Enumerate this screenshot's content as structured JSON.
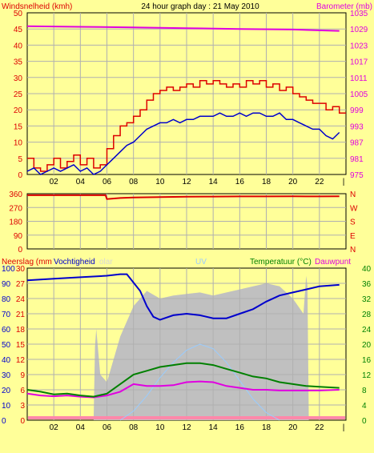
{
  "colors": {
    "background": "#ffff99",
    "plot_bg": "#ffff99",
    "grid": "#b0b0b0",
    "wind_avg": "#0000cc",
    "wind_gust": "#dd0000",
    "barometer": "#e000e0",
    "direction": "#dd0000",
    "humidity": "#0000cc",
    "temperature": "#008000",
    "dewpoint": "#e000e0",
    "solar": "#c0c0c0",
    "uv": "#99ccff",
    "rain": "#ff88aa",
    "green_text": "#008000",
    "red_text": "#dd0000",
    "magenta_text": "#e000e0"
  },
  "chart_data": [
    {
      "type": "line",
      "title": "24 hour graph day : 21 May 2010",
      "left_axis_label": "Windsnelheid (kmh)",
      "right_axis_label": "Barometer (mb)",
      "x_ticks": [
        "02",
        "04",
        "06",
        "08",
        "10",
        "12",
        "14",
        "16",
        "18",
        "20",
        "22"
      ],
      "x_hours": [
        2,
        4,
        6,
        8,
        10,
        12,
        14,
        16,
        18,
        20,
        22
      ],
      "ylim": [
        0,
        50
      ],
      "y_ticks": [
        "0",
        "5",
        "10",
        "15",
        "20",
        "25",
        "30",
        "35",
        "40",
        "45",
        "50"
      ],
      "y2lim": [
        975,
        1035
      ],
      "y2_ticks": [
        "975",
        "981",
        "987",
        "993",
        "999",
        "1005",
        "1011",
        "1017",
        "1023",
        "1029",
        "1035"
      ],
      "series": [
        {
          "id": "gust",
          "x": [
            0,
            0.5,
            1,
            1.5,
            2,
            2.5,
            3,
            3.5,
            4,
            4.5,
            5,
            5.5,
            6,
            6.5,
            7,
            7.5,
            8,
            8.5,
            9,
            9.5,
            10,
            10.5,
            11,
            11.5,
            12,
            12.5,
            13,
            13.5,
            14,
            14.5,
            15,
            15.5,
            16,
            16.5,
            17,
            17.5,
            18,
            18.5,
            19,
            19.5,
            20,
            20.5,
            21,
            21.5,
            22,
            22.5,
            23,
            23.5
          ],
          "values": [
            5,
            2,
            1,
            3,
            5,
            2,
            4,
            6,
            3,
            5,
            2,
            3,
            8,
            12,
            15,
            16,
            18,
            20,
            23,
            25,
            26,
            27,
            26,
            27,
            28,
            27,
            29,
            28,
            29,
            28,
            27,
            28,
            27,
            29,
            28,
            29,
            27,
            28,
            26,
            27,
            25,
            24,
            23,
            22,
            22,
            20,
            21,
            19
          ]
        },
        {
          "id": "average",
          "x": [
            0,
            0.5,
            1,
            1.5,
            2,
            2.5,
            3,
            3.5,
            4,
            4.5,
            5,
            5.5,
            6,
            6.5,
            7,
            7.5,
            8,
            8.5,
            9,
            9.5,
            10,
            10.5,
            11,
            11.5,
            12,
            12.5,
            13,
            13.5,
            14,
            14.5,
            15,
            15.5,
            16,
            16.5,
            17,
            17.5,
            18,
            18.5,
            19,
            19.5,
            20,
            20.5,
            21,
            21.5,
            22,
            22.5,
            23,
            23.5
          ],
          "values": [
            1,
            2,
            0,
            1,
            2,
            1,
            2,
            3,
            1,
            2,
            0,
            1,
            3,
            5,
            7,
            9,
            10,
            12,
            14,
            15,
            16,
            16,
            17,
            16,
            17,
            17,
            18,
            18,
            18,
            19,
            18,
            18,
            19,
            18,
            19,
            19,
            18,
            18,
            19,
            17,
            17,
            16,
            15,
            14,
            14,
            12,
            11,
            13
          ]
        },
        {
          "id": "barometer",
          "x": [
            0,
            4,
            8,
            12,
            16,
            20,
            23.5
          ],
          "values": [
            1030,
            1029.8,
            1029.6,
            1029.3,
            1029,
            1028.8,
            1028.3
          ]
        }
      ]
    },
    {
      "type": "line",
      "ylim": [
        0,
        360
      ],
      "y_ticks": [
        "0",
        "90",
        "180",
        "270",
        "360"
      ],
      "compass": [
        "N",
        "W",
        "S",
        "E",
        "N"
      ],
      "series": [
        {
          "id": "direction",
          "x": [
            0,
            2,
            4,
            5.9,
            6,
            7,
            8,
            10,
            12,
            14,
            16,
            18,
            20,
            22,
            23.5
          ],
          "values": [
            350,
            350,
            350,
            350,
            325,
            332,
            335,
            338,
            340,
            341,
            342,
            342,
            343,
            342,
            343
          ]
        }
      ]
    },
    {
      "type": "line",
      "left_label_a": "Neerslag (mm",
      "left_label_b": "Vochtigheid",
      "solar_label": "olar",
      "uv_label": "UV",
      "right_label_a": "Temperatuur (°C)",
      "right_label_b": "Dauwpunt",
      "hum_ticks": [
        "0",
        "10",
        "20",
        "30",
        "40",
        "50",
        "60",
        "70",
        "80",
        "90",
        "100"
      ],
      "rain_ticks": [
        "0",
        "3",
        "6",
        "9",
        "12",
        "15",
        "18",
        "21",
        "24",
        "27",
        "30"
      ],
      "temp_ticks": [
        "0",
        "4",
        "8",
        "12",
        "16",
        "20",
        "24",
        "28",
        "32",
        "36",
        "40"
      ],
      "humidity_lim": [
        0,
        100
      ],
      "temp_lim": [
        0,
        40
      ],
      "series": [
        {
          "id": "humidity",
          "x": [
            0,
            2,
            4,
            6,
            7,
            7.5,
            8.5,
            9,
            9.5,
            10,
            11,
            12,
            13,
            14,
            15,
            16,
            17,
            18,
            19,
            20,
            21,
            22,
            23.5
          ],
          "values": [
            92,
            93,
            94,
            95,
            96,
            96,
            85,
            75,
            68,
            66,
            69,
            70,
            69,
            67,
            67,
            70,
            73,
            78,
            82,
            84,
            86,
            88,
            89
          ]
        },
        {
          "id": "temperature",
          "x": [
            0,
            1,
            2,
            3,
            4,
            5,
            6,
            7,
            8,
            9,
            10,
            11,
            12,
            13,
            14,
            15,
            16,
            17,
            18,
            19,
            20,
            21,
            22,
            23.5
          ],
          "values": [
            8,
            7.5,
            6.8,
            7,
            6.5,
            6.2,
            7,
            9.5,
            12,
            13,
            14,
            14.5,
            15,
            15,
            14.5,
            13.5,
            12.5,
            11.5,
            11,
            10,
            9.5,
            9,
            8.8,
            8.5
          ]
        },
        {
          "id": "dewpoint",
          "x": [
            0,
            1,
            2,
            3,
            4,
            5,
            6,
            7,
            8,
            9,
            10,
            11,
            12,
            13,
            14,
            15,
            16,
            17,
            18,
            19,
            20,
            21,
            22,
            23.5
          ],
          "values": [
            7,
            6.5,
            6.3,
            6.5,
            6.2,
            6,
            6.5,
            7.5,
            9.5,
            9,
            9,
            9.2,
            10,
            10.2,
            10,
            9,
            8.5,
            8,
            8,
            7.8,
            7.8,
            7.8,
            7.8,
            8
          ]
        },
        {
          "id": "solar",
          "x": [
            0,
            4.9,
            5,
            5.1,
            5.2,
            5.5,
            6,
            7,
            8,
            9,
            10,
            11,
            12,
            13,
            14,
            15,
            16,
            17,
            18,
            19,
            20,
            20.8,
            21,
            21.1,
            21.2,
            23.5
          ],
          "values": [
            0,
            0,
            0,
            48,
            60,
            30,
            25,
            55,
            75,
            85,
            80,
            82,
            83,
            84,
            82,
            84,
            86,
            88,
            90,
            88,
            80,
            70,
            95,
            88,
            0,
            0
          ]
        },
        {
          "id": "uv",
          "x": [
            7,
            8,
            9,
            10,
            11,
            12,
            13,
            14,
            15,
            16,
            17,
            18,
            19
          ],
          "values": [
            0,
            6,
            16,
            28,
            38,
            46,
            50,
            47,
            38,
            26,
            14,
            5,
            0
          ]
        }
      ]
    }
  ]
}
